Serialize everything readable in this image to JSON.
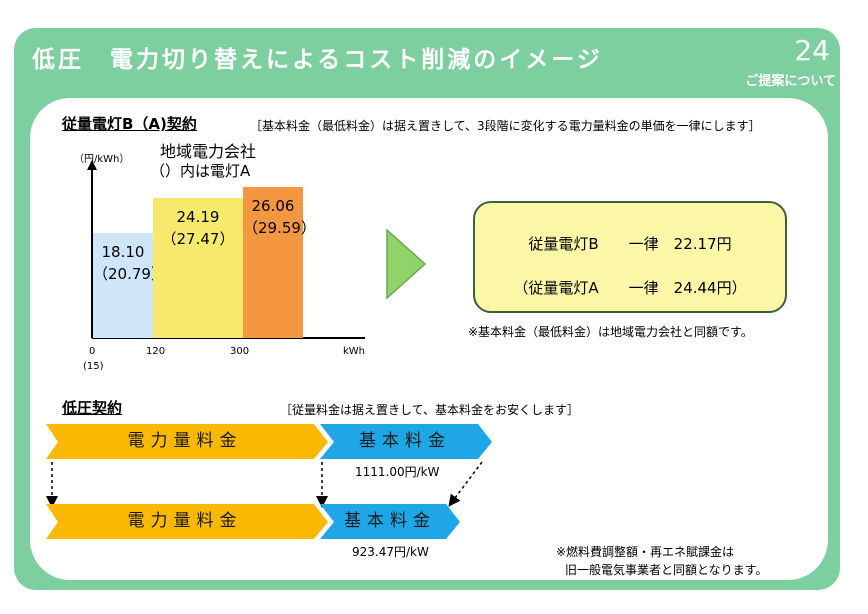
{
  "header": {
    "title": "低圧　電力切り替えによるコスト削減のイメージ",
    "page_number": "24",
    "subtitle": "ご提案について"
  },
  "section_b": {
    "title": "従量電灯B（A)契約",
    "note": "［基本料金（最低料金）は据え置きして、3段階に変化する電力量料金の単価を一律にします］",
    "chart_caption_1": "地域電力会社",
    "chart_caption_2": "（）内は電灯A"
  },
  "chart_data": {
    "type": "bar",
    "ylabel": "（円/kWh）",
    "xlabel": "kWh",
    "x_ticks": [
      "0",
      "120",
      "300"
    ],
    "x_tick_sub": "(15)",
    "bars": [
      {
        "range": [
          0,
          120
        ],
        "value": 18.1,
        "label": "18.10",
        "label_a": "（20.79）",
        "color": "#cfe6f8"
      },
      {
        "range": [
          120,
          300
        ],
        "value": 24.19,
        "label": "24.19",
        "label_a": "（27.47）",
        "color": "#f6e96b"
      },
      {
        "range": [
          300,
          420
        ],
        "value": 26.06,
        "label": "26.06",
        "label_a": "（29.59）",
        "color": "#f59640"
      }
    ]
  },
  "summary": {
    "line1": "従量電灯B　　一律　22.17円",
    "line2": "（従量電灯A　　一律　24.44円）",
    "footnote": "※基本料金（最低料金）は地域電力会社と同額です。"
  },
  "section_low": {
    "title": "低圧契約",
    "note": "［従量料金は据え置きして、基本料金をお安くします］",
    "row1_energy": "電力量料金",
    "row1_basic": "基本料金",
    "row1_price": "1111.00円/kW",
    "row2_energy": "電力量料金",
    "row2_basic": "基本料金",
    "row2_price": "923.47円/kW",
    "footnote_1": "※燃料費調整額・再エネ賦課金は",
    "footnote_2": "旧一般電気事業者と同額となります。"
  },
  "colors": {
    "frame": "#7ecfa0",
    "arrow_energy": "#fbb800",
    "arrow_basic": "#1ea6e6",
    "next_arrow": "#8fd36a"
  }
}
